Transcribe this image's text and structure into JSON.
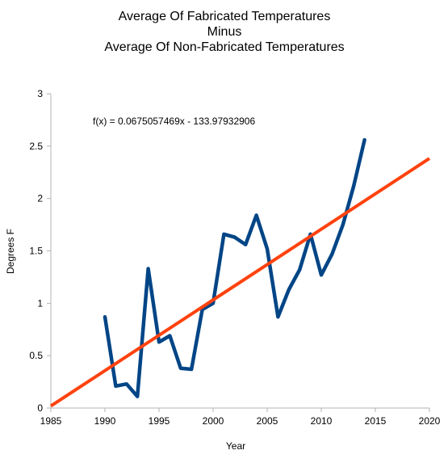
{
  "chart_data": {
    "type": "line",
    "title": [
      "Average Of Fabricated Temperatures",
      "Minus",
      "Average Of Non-Fabricated Temperatures"
    ],
    "xlabel": "Year",
    "ylabel": "Degrees F",
    "xlim": [
      1985,
      2020
    ],
    "ylim": [
      0,
      3
    ],
    "x_ticks": [
      1985,
      1990,
      1995,
      2000,
      2005,
      2010,
      2015,
      2020
    ],
    "y_ticks": [
      0,
      0.5,
      1,
      1.5,
      2,
      2.5,
      3
    ],
    "y_tick_labels": [
      "0",
      "0.5",
      "1",
      "1.5",
      "2",
      "2.5",
      "3"
    ],
    "grid": false,
    "legend": "none",
    "annotation": "f(x) = 0.0675057469x - 133.97932906",
    "series": [
      {
        "color": "#004586",
        "x": [
          1990,
          1991,
          1992,
          1993,
          1994,
          1995,
          1996,
          1997,
          1998,
          1999,
          2000,
          2001,
          2002,
          2003,
          2004,
          2005,
          2006,
          2007,
          2008,
          2009,
          2010,
          2011,
          2012,
          2013,
          2014
        ],
        "values": [
          0.87,
          0.21,
          0.23,
          0.11,
          1.33,
          0.63,
          0.69,
          0.38,
          0.37,
          0.94,
          1.0,
          1.66,
          1.63,
          1.56,
          1.84,
          1.52,
          0.87,
          1.13,
          1.32,
          1.66,
          1.27,
          1.47,
          1.75,
          2.12,
          2.56
        ]
      }
    ],
    "trendline": {
      "color": "#ff420e",
      "slope": 0.0675057469,
      "intercept": -133.97932906
    }
  }
}
